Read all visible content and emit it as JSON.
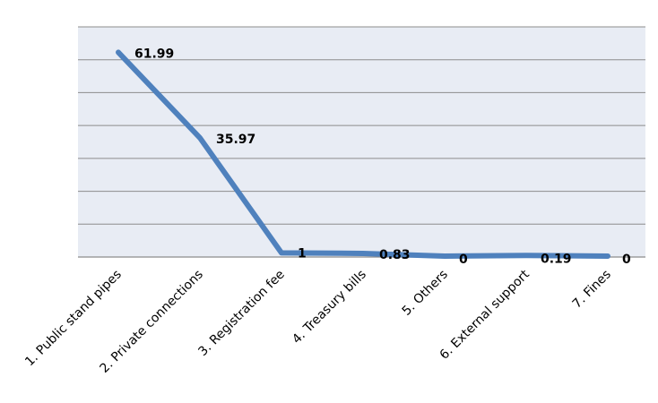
{
  "chart_data": {
    "type": "line",
    "categories": [
      "1. Public stand pipes",
      "2. Private connections",
      "3. Registration fee",
      "4. Treasury bills",
      "5. Others",
      "6. External support",
      "7. Fines"
    ],
    "series": [
      {
        "values": [
          61.99,
          35.97,
          1,
          0.83,
          0,
          0.19,
          0
        ],
        "color": "#4F81BD"
      }
    ],
    "data_labels": [
      "61.99",
      "35.97",
      "1",
      "0.83",
      "0",
      "0.19",
      "0"
    ],
    "ylim": [
      0,
      70
    ],
    "grid": true,
    "plot_background": "#E8ECF4",
    "grid_color": "#8C8C8C",
    "legend": "none"
  }
}
